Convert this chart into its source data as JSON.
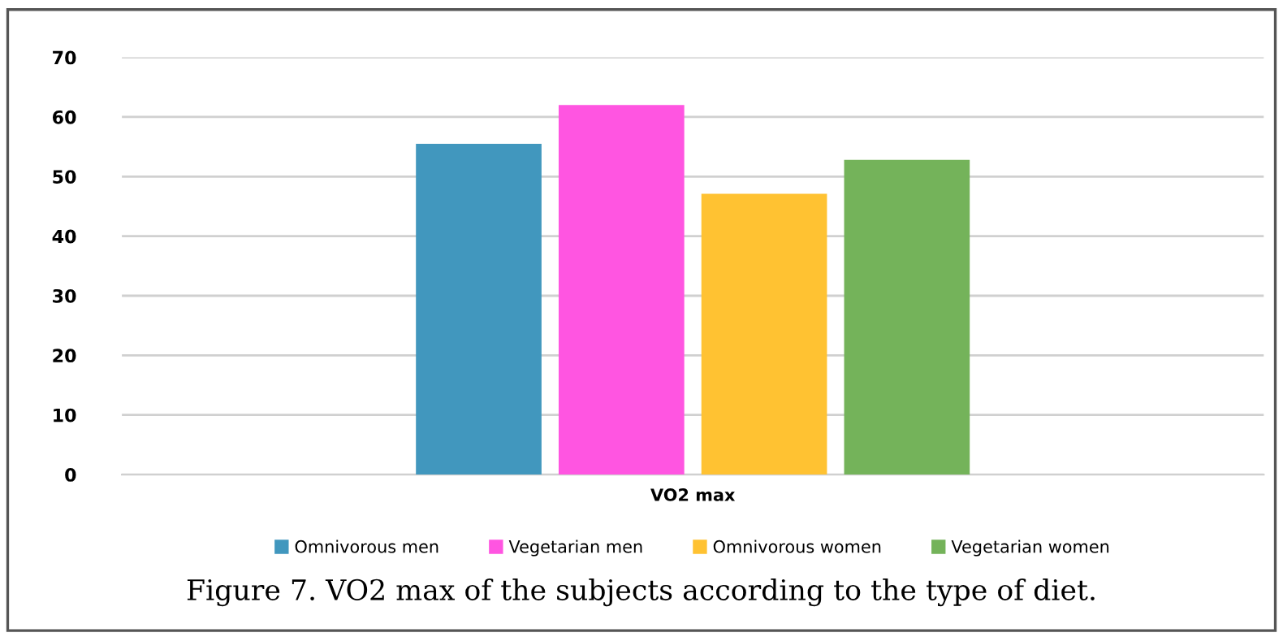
{
  "chart_data": {
    "type": "bar",
    "categories": [
      "VO2 max"
    ],
    "series": [
      {
        "name": "Omnivorous men",
        "color": "#4197be",
        "values": [
          55.5
        ]
      },
      {
        "name": "Vegetarian men",
        "color": "#ff55e1",
        "values": [
          62.0
        ]
      },
      {
        "name": "Omnivorous women",
        "color": "#ffc232",
        "values": [
          47.1
        ]
      },
      {
        "name": "Vegetarian women",
        "color": "#74b35a",
        "values": [
          52.8
        ]
      }
    ],
    "ylim": [
      0,
      70
    ],
    "yticks": [
      0,
      10,
      20,
      30,
      40,
      50,
      60,
      70
    ],
    "grid": "y",
    "legend": "bottom",
    "annotations": [
      "Figure 7. VO2 max of the subjects according to the type of diet."
    ]
  }
}
